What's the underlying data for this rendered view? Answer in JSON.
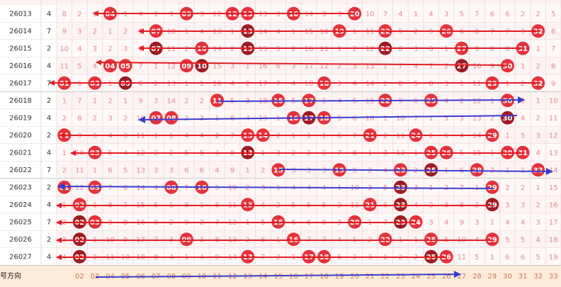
{
  "rows": [
    {
      "issue": "26013",
      "tail": "4",
      "cells": [
        8,
        2,
        1,
        "04",
        1,
        4,
        1,
        9,
        "09",
        3,
        12,
        "12",
        "13",
        13,
        3,
        "16",
        14,
        9,
        3,
        "20",
        10,
        7,
        4,
        1,
        4,
        3,
        5,
        7,
        6,
        6,
        2,
        2,
        5
      ]
    },
    {
      "issue": "26014",
      "tail": "7",
      "cells": [
        9,
        3,
        2,
        1,
        2,
        5,
        "07",
        10,
        1,
        4,
        13,
        1,
        "13",
        14,
        4,
        1,
        15,
        10,
        "19",
        1,
        11,
        "22",
        5,
        2,
        5,
        "26",
        6,
        8,
        7,
        7,
        3,
        "32",
        6
      ]
    },
    {
      "issue": "26015",
      "tail": "2",
      "cells": [
        10,
        4,
        3,
        2,
        3,
        6,
        "07",
        11,
        2,
        "10",
        14,
        2,
        "13",
        15,
        5,
        2,
        16,
        11,
        1,
        2,
        12,
        "22",
        6,
        3,
        6,
        1,
        "27",
        9,
        8,
        8,
        "31",
        1,
        7
      ]
    },
    {
      "issue": "26016",
      "tail": "4",
      "cells": [
        11,
        5,
        4,
        "04",
        "05",
        7,
        1,
        12,
        "09",
        "10",
        15,
        3,
        1,
        16,
        6,
        3,
        17,
        12,
        2,
        3,
        13,
        1,
        7,
        4,
        7,
        2,
        "27",
        10,
        9,
        "30",
        1,
        2,
        8
      ]
    },
    {
      "issue": "26017",
      "tail": "7",
      "cells": [
        "01",
        6,
        "03",
        1,
        "05",
        8,
        2,
        13,
        1,
        1,
        16,
        4,
        2,
        17,
        7,
        4,
        18,
        "18",
        3,
        4,
        14,
        2,
        8,
        5,
        8,
        3,
        1,
        11,
        "29",
        1,
        2,
        "32",
        9
      ]
    },
    {
      "issue": "26018",
      "tail": "2",
      "cells": [
        1,
        7,
        1,
        2,
        1,
        9,
        3,
        14,
        2,
        2,
        "11",
        5,
        3,
        18,
        "15",
        5,
        "17",
        1,
        4,
        5,
        15,
        "22",
        9,
        6,
        "25",
        4,
        2,
        12,
        1,
        "30",
        3,
        1,
        10
      ]
    },
    {
      "issue": "26019",
      "tail": "4",
      "cells": [
        2,
        8,
        2,
        3,
        2,
        10,
        "07",
        "08",
        3,
        3,
        1,
        6,
        4,
        19,
        1,
        "16",
        "17",
        "18",
        5,
        6,
        16,
        1,
        10,
        7,
        1,
        5,
        3,
        13,
        2,
        "30",
        4,
        2,
        11
      ]
    },
    {
      "issue": "26020",
      "tail": "2",
      "cells": [
        "01",
        9,
        3,
        4,
        3,
        11,
        1,
        1,
        4,
        4,
        2,
        7,
        "13",
        "14",
        2,
        1,
        1,
        1,
        6,
        7,
        "21",
        2,
        11,
        "24",
        2,
        6,
        4,
        14,
        "29",
        1,
        5,
        3,
        12
      ]
    },
    {
      "issue": "26021",
      "tail": "4",
      "cells": [
        1,
        10,
        "03",
        5,
        4,
        12,
        2,
        2,
        5,
        5,
        3,
        8,
        "13",
        1,
        3,
        2,
        2,
        2,
        7,
        8,
        1,
        3,
        12,
        1,
        "25",
        "26",
        5,
        15,
        1,
        "30",
        "31",
        4,
        13
      ]
    },
    {
      "issue": "26022",
      "tail": "7",
      "cells": [
        2,
        11,
        1,
        6,
        5,
        13,
        3,
        3,
        6,
        6,
        4,
        9,
        1,
        2,
        "15",
        3,
        3,
        3,
        "19",
        9,
        2,
        4,
        "23",
        2,
        "25",
        1,
        6,
        "28",
        2,
        1,
        1,
        "32",
        14
      ]
    },
    {
      "issue": "26023",
      "tail": "2",
      "cells": [
        "01",
        12,
        "03",
        7,
        6,
        14,
        4,
        "08",
        7,
        "10",
        5,
        10,
        2,
        3,
        1,
        4,
        4,
        4,
        1,
        10,
        3,
        5,
        "23",
        3,
        1,
        2,
        7,
        1,
        "29",
        2,
        2,
        1,
        15
      ]
    },
    {
      "issue": "26024",
      "tail": "4",
      "cells": [
        1,
        "02",
        1,
        8,
        7,
        15,
        5,
        1,
        8,
        1,
        6,
        11,
        "13",
        4,
        2,
        5,
        5,
        5,
        2,
        11,
        "21",
        6,
        "23",
        4,
        2,
        3,
        8,
        2,
        "29",
        3,
        3,
        2,
        16
      ]
    },
    {
      "issue": "26025",
      "tail": "7",
      "cells": [
        2,
        "02",
        "03",
        9,
        8,
        16,
        6,
        2,
        9,
        2,
        7,
        12,
        1,
        5,
        "15",
        6,
        6,
        6,
        3,
        "20",
        1,
        7,
        "23",
        "24",
        3,
        4,
        9,
        3,
        1,
        4,
        4,
        3,
        17
      ]
    },
    {
      "issue": "26026",
      "tail": "2",
      "cells": [
        3,
        "02",
        1,
        10,
        9,
        17,
        7,
        3,
        "09",
        3,
        8,
        13,
        2,
        6,
        1,
        "16",
        7,
        7,
        4,
        1,
        2,
        "22",
        1,
        1,
        "25",
        5,
        10,
        4,
        "29",
        5,
        5,
        4,
        18
      ]
    },
    {
      "issue": "26027",
      "tail": "4",
      "cells": [
        4,
        "02",
        2,
        11,
        10,
        18,
        8,
        4,
        1,
        4,
        9,
        14,
        "13",
        7,
        2,
        1,
        "17",
        "18",
        5,
        2,
        3,
        1,
        2,
        2,
        "25",
        "26",
        11,
        5,
        1,
        6,
        6,
        5,
        19
      ]
    }
  ],
  "footer": {
    "label": "起号方向",
    "numbers": [
      "02",
      "03",
      "04",
      "05",
      "06",
      "07",
      "08",
      "09",
      "10",
      "11",
      "12",
      "13",
      "14",
      "15",
      "16",
      "17",
      "18",
      "19",
      "20",
      "21",
      "22",
      "23",
      "24",
      "25",
      "26",
      "27",
      "28",
      "29",
      "30",
      "31",
      "32",
      "33"
    ]
  }
}
